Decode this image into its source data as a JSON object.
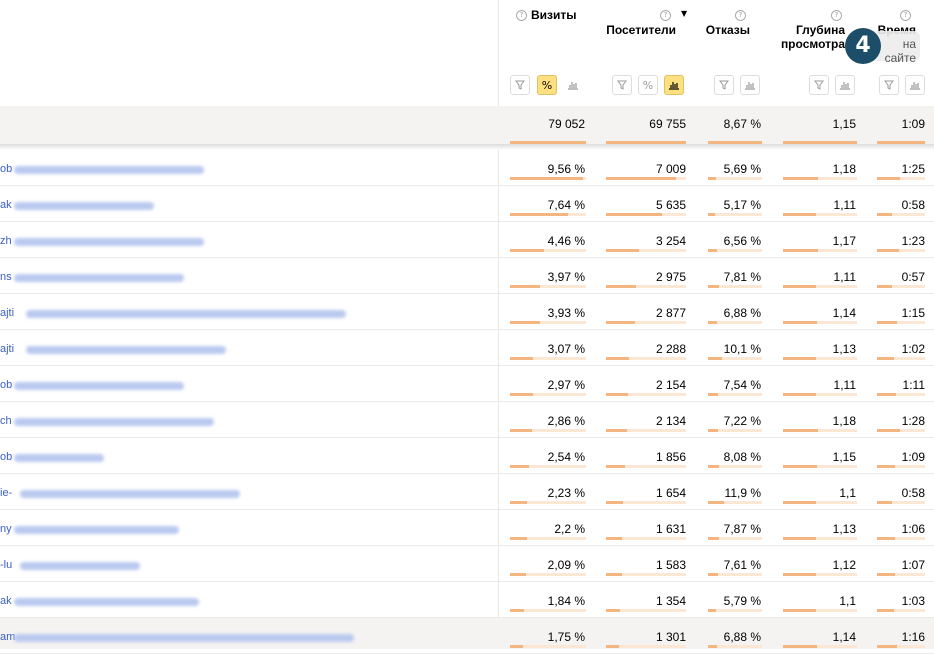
{
  "columns": [
    {
      "key": "visits",
      "label": "Визиты",
      "active_tool": "percent"
    },
    {
      "key": "visitors",
      "label": "Посетители",
      "sorted": true,
      "active_tool": "bars"
    },
    {
      "key": "bounces",
      "label": "Отказы"
    },
    {
      "key": "depth",
      "label_line1": "Глубина",
      "label_line2": "просмотра"
    },
    {
      "key": "time",
      "label_line1": "Время",
      "label_line2": "на",
      "label_line3": "сайте"
    }
  ],
  "header_icons": {
    "help": "?",
    "sort": "▼",
    "filter": "funnel-icon",
    "percent": "%",
    "bars": "bar-chart-icon"
  },
  "totals": {
    "visits": "79 052",
    "visitors": "69 755",
    "bounces": "8,67 %",
    "depth": "1,15",
    "time": "1:09"
  },
  "rows": [
    {
      "prefix": "ob",
      "visits": "9,56 %",
      "visits_pct": 9.56,
      "visitors": "7 009",
      "bounces": "5,69 %",
      "depth": "1,18",
      "time": "1:25"
    },
    {
      "prefix": "ak",
      "visits": "7,64 %",
      "visits_pct": 7.64,
      "visitors": "5 635",
      "bounces": "5,17 %",
      "depth": "1,11",
      "time": "0:58"
    },
    {
      "prefix": "zh",
      "visits": "4,46 %",
      "visits_pct": 4.46,
      "visitors": "3 254",
      "bounces": "6,56 %",
      "depth": "1,17",
      "time": "1:23"
    },
    {
      "prefix": "ns",
      "visits": "3,97 %",
      "visits_pct": 3.97,
      "visitors": "2 975",
      "bounces": "7,81 %",
      "depth": "1,11",
      "time": "0:57"
    },
    {
      "prefix": "ajti",
      "visits": "3,93 %",
      "visits_pct": 3.93,
      "visitors": "2 877",
      "bounces": "6,88 %",
      "depth": "1,14",
      "time": "1:15"
    },
    {
      "prefix": "ajti",
      "visits": "3,07 %",
      "visits_pct": 3.07,
      "visitors": "2 288",
      "bounces": "10,1 %",
      "depth": "1,13",
      "time": "1:02"
    },
    {
      "prefix": "ob",
      "visits": "2,97 %",
      "visits_pct": 2.97,
      "visitors": "2 154",
      "bounces": "7,54 %",
      "depth": "1,11",
      "time": "1:11"
    },
    {
      "prefix": "ch",
      "visits": "2,86 %",
      "visits_pct": 2.86,
      "visitors": "2 134",
      "bounces": "7,22 %",
      "depth": "1,18",
      "time": "1:28"
    },
    {
      "prefix": "ob",
      "visits": "2,54 %",
      "visits_pct": 2.54,
      "visitors": "1 856",
      "bounces": "8,08 %",
      "depth": "1,15",
      "time": "1:09"
    },
    {
      "prefix": "ie-",
      "visits": "2,23 %",
      "visits_pct": 2.23,
      "visitors": "1 654",
      "bounces": "11,9 %",
      "depth": "1,1",
      "time": "0:58"
    },
    {
      "prefix": "ny",
      "visits": "2,2 %",
      "visits_pct": 2.2,
      "visitors": "1 631",
      "bounces": "7,87 %",
      "depth": "1,13",
      "time": "1:06"
    },
    {
      "prefix": "-lu",
      "visits": "2,09 %",
      "visits_pct": 2.09,
      "visitors": "1 583",
      "bounces": "7,61 %",
      "depth": "1,12",
      "time": "1:07"
    },
    {
      "prefix": "ak",
      "visits": "1,84 %",
      "visits_pct": 1.84,
      "visitors": "1 354",
      "bounces": "5,79 %",
      "depth": "1,1",
      "time": "1:03"
    },
    {
      "prefix": "am",
      "visits": "1,75 %",
      "visits_pct": 1.75,
      "visitors": "1 301",
      "bounces": "6,88 %",
      "depth": "1,14",
      "time": "1:16"
    }
  ],
  "colors": {
    "bar": "#f4b680",
    "bar_bg": "#fbe7d4",
    "active_button": "#ffe080",
    "link": "#3b5fc4",
    "total_bg": "#f4f3f2"
  },
  "logo": {
    "glyph": "4"
  }
}
